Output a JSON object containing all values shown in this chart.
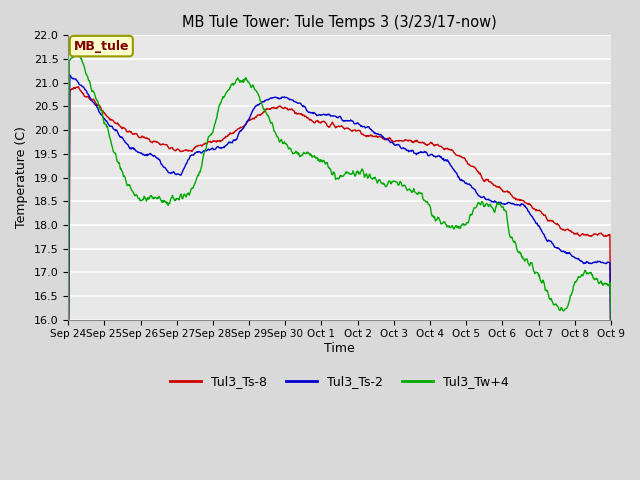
{
  "title": "MB Tule Tower: Tule Temps 3 (3/23/17-now)",
  "xlabel": "Time",
  "ylabel": "Temperature (C)",
  "ylim": [
    16.0,
    22.0
  ],
  "yticks": [
    16.0,
    16.5,
    17.0,
    17.5,
    18.0,
    18.5,
    19.0,
    19.5,
    20.0,
    20.5,
    21.0,
    21.5,
    22.0
  ],
  "xtick_labels": [
    "Sep 24",
    "Sep 25",
    "Sep 26",
    "Sep 27",
    "Sep 28",
    "Sep 29",
    "Sep 30",
    "Oct 1",
    "Oct 2",
    "Oct 3",
    "Oct 4",
    "Oct 5",
    "Oct 6",
    "Oct 7",
    "Oct 8",
    "Oct 9"
  ],
  "line_red_label": "Tul3_Ts-8",
  "line_blue_label": "Tul3_Ts-2",
  "line_green_label": "Tul3_Tw+4",
  "line_red_color": "#cc0000",
  "line_blue_color": "#0000cc",
  "line_green_color": "#00aa00",
  "outer_bg_color": "#d9d9d9",
  "plot_bg_color": "#e8e8e8",
  "legend_box_color": "#ffffcc",
  "legend_box_text": "MB_tule",
  "legend_box_text_color": "#800000",
  "red_kx": [
    0,
    0.15,
    0.4,
    0.7,
    1.0,
    1.3,
    1.6,
    2.0,
    2.4,
    2.8,
    3.1,
    3.4,
    3.7,
    4.0,
    4.3,
    4.6,
    4.9,
    5.2,
    5.5,
    5.8,
    6.1,
    6.4,
    6.7,
    7.0,
    7.3,
    7.6,
    7.9,
    8.2,
    8.5,
    8.8,
    9.1,
    9.4,
    9.7,
    10.0,
    10.3,
    10.6,
    10.9,
    11.2,
    11.5,
    11.8,
    12.1,
    12.4,
    12.7,
    13.0,
    13.3,
    13.6,
    13.9,
    14.2,
    14.5,
    14.8,
    15.0
  ],
  "red_ky": [
    20.85,
    20.9,
    20.8,
    20.6,
    20.35,
    20.15,
    20.0,
    19.85,
    19.75,
    19.65,
    19.55,
    19.6,
    19.7,
    19.75,
    19.85,
    19.95,
    20.15,
    20.3,
    20.45,
    20.5,
    20.45,
    20.35,
    20.2,
    20.15,
    20.1,
    20.05,
    20.0,
    19.9,
    19.85,
    19.8,
    19.75,
    19.8,
    19.75,
    19.7,
    19.65,
    19.55,
    19.4,
    19.2,
    19.0,
    18.85,
    18.7,
    18.55,
    18.45,
    18.3,
    18.1,
    17.95,
    17.85,
    17.8,
    17.8,
    17.8,
    17.8
  ],
  "blue_kx": [
    0,
    0.15,
    0.4,
    0.7,
    1.0,
    1.3,
    1.6,
    2.0,
    2.4,
    2.8,
    3.1,
    3.4,
    3.7,
    4.0,
    4.3,
    4.6,
    4.9,
    5.2,
    5.5,
    5.8,
    6.1,
    6.4,
    6.7,
    7.0,
    7.3,
    7.5,
    7.8,
    8.1,
    8.4,
    8.7,
    9.0,
    9.3,
    9.6,
    9.9,
    10.2,
    10.5,
    10.8,
    11.1,
    11.4,
    11.7,
    12.0,
    12.3,
    12.6,
    12.9,
    13.2,
    13.5,
    13.8,
    14.1,
    14.4,
    14.7,
    15.0
  ],
  "blue_ky": [
    21.2,
    21.1,
    20.9,
    20.6,
    20.2,
    20.0,
    19.7,
    19.5,
    19.45,
    19.1,
    19.05,
    19.5,
    19.55,
    19.6,
    19.65,
    19.8,
    20.1,
    20.55,
    20.65,
    20.7,
    20.65,
    20.55,
    20.35,
    20.3,
    20.3,
    20.25,
    20.2,
    20.1,
    20.0,
    19.85,
    19.7,
    19.6,
    19.55,
    19.5,
    19.45,
    19.35,
    19.0,
    18.85,
    18.6,
    18.5,
    18.45,
    18.45,
    18.4,
    18.1,
    17.7,
    17.5,
    17.4,
    17.25,
    17.2,
    17.2,
    17.2
  ],
  "green_kx": [
    0,
    0.1,
    0.25,
    0.4,
    0.55,
    0.7,
    0.85,
    1.0,
    1.2,
    1.4,
    1.6,
    1.8,
    2.0,
    2.2,
    2.4,
    2.6,
    2.8,
    3.0,
    3.2,
    3.4,
    3.6,
    3.8,
    4.0,
    4.2,
    4.4,
    4.6,
    4.8,
    5.0,
    5.2,
    5.4,
    5.6,
    5.8,
    6.0,
    6.2,
    6.4,
    6.6,
    6.8,
    7.0,
    7.2,
    7.4,
    7.6,
    7.8,
    8.0,
    8.2,
    8.4,
    8.6,
    8.8,
    9.0,
    9.2,
    9.4,
    9.6,
    9.8,
    10.0,
    10.2,
    10.4,
    10.6,
    10.8,
    11.0,
    11.2,
    11.4,
    11.6,
    11.8,
    12.0,
    12.2,
    12.5,
    12.8,
    13.0,
    13.2,
    13.4,
    13.6,
    13.8,
    14.0,
    14.2,
    14.4,
    14.6,
    14.8,
    15.0
  ],
  "green_ky": [
    21.45,
    21.55,
    21.6,
    21.4,
    21.1,
    20.8,
    20.5,
    20.15,
    19.7,
    19.25,
    18.9,
    18.65,
    18.5,
    18.55,
    18.6,
    18.5,
    18.5,
    18.55,
    18.65,
    18.75,
    19.0,
    19.65,
    20.0,
    20.55,
    20.85,
    21.0,
    21.1,
    21.0,
    20.8,
    20.5,
    20.15,
    19.8,
    19.7,
    19.55,
    19.5,
    19.5,
    19.45,
    19.35,
    19.2,
    19.0,
    19.05,
    19.1,
    19.1,
    19.05,
    19.0,
    18.9,
    18.85,
    18.9,
    18.85,
    18.75,
    18.7,
    18.65,
    18.35,
    18.1,
    18.0,
    17.9,
    17.95,
    18.0,
    18.35,
    18.5,
    18.4,
    18.35,
    18.5,
    17.8,
    17.35,
    17.15,
    16.95,
    16.65,
    16.35,
    16.2,
    16.3,
    16.8,
    16.95,
    17.0,
    16.85,
    16.75,
    16.75
  ]
}
